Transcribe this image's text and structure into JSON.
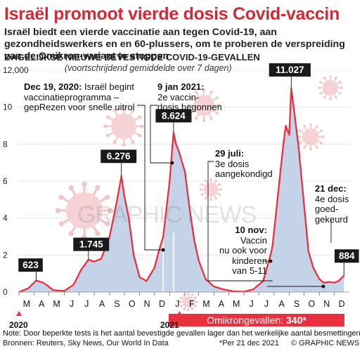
{
  "headline": "Israël promoot vierde dosis Covid-vaccin",
  "intro": "Israël biedt een vierde vaccinatie aan tegen Covid-19, aan gezondheidswerkers en en 60-plussers, om te proberen de verspreiding van de Omikron-variant te stoppen",
  "chart_data": {
    "type": "area",
    "title": "DAGELIJKSE NIEUWE BEVESTIGDE COVID-19-GEVALLEN",
    "subtitle": "(voortschrijdend gemiddelde over 7 dagen)",
    "y_ticks": [
      "12,000",
      "10",
      "8",
      "6",
      "4",
      "2",
      "0"
    ],
    "y_tick_values": [
      12000,
      10000,
      8000,
      6000,
      4000,
      2000,
      0
    ],
    "ylim": [
      0,
      12000
    ],
    "x_ticks": [
      "M",
      "A",
      "M",
      "J",
      "J",
      "A",
      "S",
      "O",
      "N",
      "D",
      "J",
      "F",
      "M",
      "A",
      "M",
      "J",
      "J",
      "A",
      "S",
      "O",
      "N",
      "D"
    ],
    "x_years": [
      "2020",
      "2021"
    ],
    "series": [
      {
        "x": [
          "2020-03-01",
          "2020-03-20",
          "2020-04-05",
          "2020-04-20",
          "2020-05-10",
          "2020-06-01",
          "2020-06-20",
          "2020-07-05",
          "2020-07-20",
          "2020-08-01",
          "2020-08-15",
          "2020-09-01",
          "2020-09-15",
          "2020-09-25",
          "2020-10-01",
          "2020-10-10",
          "2020-10-20",
          "2020-11-01",
          "2020-11-15",
          "2020-12-01",
          "2020-12-10",
          "2020-12-19",
          "2021-01-01",
          "2021-01-09",
          "2021-01-14",
          "2021-01-20",
          "2021-02-01",
          "2021-02-10",
          "2021-02-20",
          "2021-03-01",
          "2021-03-15",
          "2021-04-01",
          "2021-04-20",
          "2021-05-10",
          "2021-06-01",
          "2021-06-20",
          "2021-07-10",
          "2021-07-25",
          "2021-07-29",
          "2021-08-10",
          "2021-08-20",
          "2021-08-25",
          "2021-09-01",
          "2021-09-05",
          "2021-09-10",
          "2021-09-20",
          "2021-10-01",
          "2021-10-10",
          "2021-10-20",
          "2021-11-01",
          "2021-11-10",
          "2021-11-20",
          "2021-12-01",
          "2021-12-10",
          "2021-12-21"
        ],
        "values": [
          5,
          200,
          623,
          500,
          100,
          60,
          400,
          1200,
          1745,
          1650,
          1800,
          3000,
          4800,
          6276,
          5200,
          4000,
          2000,
          800,
          600,
          1300,
          2200,
          3000,
          6000,
          8624,
          8000,
          7600,
          6500,
          4600,
          2800,
          1700,
          700,
          300,
          150,
          40,
          20,
          150,
          600,
          2000,
          2500,
          5500,
          8000,
          9000,
          8500,
          11027,
          10000,
          7800,
          4700,
          2200,
          1300,
          700,
          500,
          550,
          500,
          600,
          884
        ]
      }
    ],
    "annotations": [
      {
        "date": "2020-04-05",
        "label": "623"
      },
      {
        "date": "2020-07-20",
        "label": "1.745"
      },
      {
        "date": "2020-09-25",
        "label": "6.276"
      },
      {
        "date": "2021-01-09",
        "label": "8.624"
      },
      {
        "date": "2021-09-05",
        "label": "11.027"
      },
      {
        "date": "2021-12-21",
        "label": "884"
      }
    ]
  },
  "events": {
    "dec19_date": "Dec 19, 2020:",
    "dec19_l1": " Israël begint",
    "dec19_l2": "vaccinatieprogramma –",
    "dec19_l3": "gepRezen voor snelle uitrol",
    "jan9_date": "9 jan 2021:",
    "jan9_l1": "2e vaccin-",
    "jan9_l2": "dosis begonnen",
    "jul29_date": "29 juli:",
    "jul29_l1": "3e dosis",
    "jul29_l2": "aangekondigd",
    "nov10_date": "10 nov:",
    "nov10_l1": "Vaccin",
    "nov10_l2": "nu ook voor",
    "nov10_l3": "kinderen",
    "nov10_l4": "van 5-11",
    "dec21_date": "21 dec:",
    "dec21_l1": "4e dosis",
    "dec21_l2": "goed-",
    "dec21_l3": "gekeurd"
  },
  "omicron_label": "Omikrongevallen: ",
  "omicron_value": "340*",
  "note": "Note: Door beperkte tests is het aantal bevestigde gevallen lager dan het werkelijke aantal besmettingen",
  "sources": "Bronnen: Reuters, Sky News, Our World In Data",
  "asof": "*Per 21 dec 2021",
  "credit": "© GRAPHIC NEWS",
  "watermark": "GRAPHIC NEWS",
  "colors": {
    "red": "#e8303e",
    "title_red": "#d12a36",
    "area": "#c5d3e8",
    "line": "#e8303e",
    "label_bg": "#1a1a1a"
  }
}
